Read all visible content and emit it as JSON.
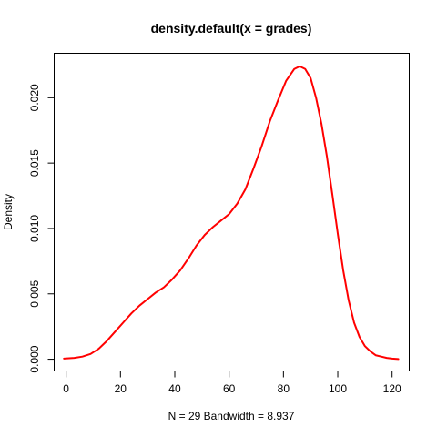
{
  "chart_data": {
    "type": "line",
    "title": "density.default(x = grades)",
    "xlabel": "N = 29   Bandwidth = 8.937",
    "ylabel": "Density",
    "xlim": [
      -4.4,
      126.3
    ],
    "ylim": [
      -0.0009,
      0.0234
    ],
    "x_ticks": [
      0,
      20,
      40,
      60,
      80,
      100,
      120
    ],
    "y_ticks": [
      0.0,
      0.005,
      0.01,
      0.015,
      0.02
    ],
    "x_tick_labels": [
      "0",
      "20",
      "40",
      "60",
      "80",
      "100",
      "120"
    ],
    "y_tick_labels": [
      "0.000",
      "0.005",
      "0.010",
      "0.015",
      "0.020"
    ],
    "grid": false,
    "series": [
      {
        "color": "#ff0000",
        "x": [
          -0.8,
          3,
          6,
          9,
          12,
          15,
          18,
          21,
          24,
          27,
          30,
          33,
          36,
          39,
          42,
          45,
          48,
          51,
          54,
          57,
          60,
          63,
          66,
          69,
          72,
          75,
          78,
          81,
          84,
          86,
          88,
          90,
          92,
          94,
          96,
          98,
          100,
          102,
          104,
          106,
          108,
          110,
          112,
          114,
          116,
          118,
          120,
          122.3
        ],
        "y": [
          5e-05,
          0.0001,
          0.0002,
          0.0004,
          0.0008,
          0.0014,
          0.0021,
          0.0028,
          0.0035,
          0.0041,
          0.0046,
          0.0051,
          0.0055,
          0.0061,
          0.0068,
          0.0077,
          0.0087,
          0.0095,
          0.0101,
          0.0106,
          0.0111,
          0.0119,
          0.013,
          0.0146,
          0.0163,
          0.0182,
          0.0198,
          0.0213,
          0.0222,
          0.0224,
          0.0222,
          0.0215,
          0.02,
          0.018,
          0.0155,
          0.0126,
          0.0096,
          0.0068,
          0.0045,
          0.0028,
          0.0017,
          0.001,
          0.0006,
          0.0003,
          0.0002,
          0.0001,
          5e-05,
          1e-05
        ]
      }
    ]
  }
}
